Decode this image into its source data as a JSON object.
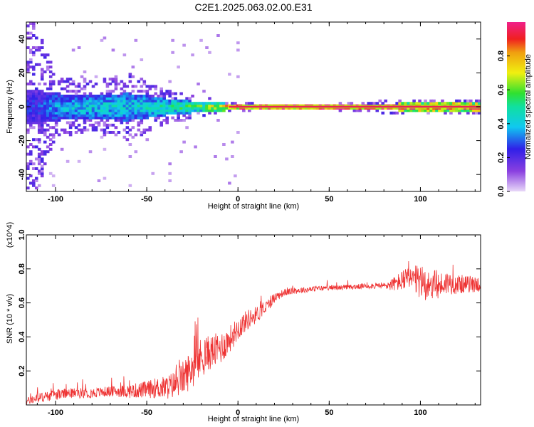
{
  "title": "C2E1.2025.063.02.00.E31",
  "colors": {
    "snr_line": "#ee3333",
    "axis": "#000000",
    "background": "#ffffff"
  },
  "chart_data": [
    {
      "type": "heatmap",
      "xlabel": "Height of straight line (km)",
      "ylabel": "Frequency (Hz)",
      "xlim": [
        -116,
        133
      ],
      "ylim": [
        -50,
        50
      ],
      "x_ticks": [
        -100,
        -50,
        0,
        50,
        100
      ],
      "x_tick_labels": [
        "-100",
        "-50",
        "0",
        "50",
        "100"
      ],
      "y_ticks": [
        -40,
        -20,
        0,
        20,
        40
      ],
      "y_tick_labels": [
        "-40",
        "-20",
        "0",
        "20",
        "40"
      ],
      "grid": false,
      "colorbar": {
        "label": "Normalized spectral amplitude",
        "range": [
          0,
          1
        ],
        "ticks": [
          0.0,
          0.2,
          0.4,
          0.6,
          0.8
        ],
        "tick_labels": [
          "0.0",
          "0.2",
          "0.4",
          "0.6",
          "0.8"
        ],
        "colormap": "purple-blue-cyan-green-yellow-red-magenta"
      },
      "bands": [
        {
          "x": -110,
          "core_amplitude": 0.25,
          "core_halfwidth_hz": 10,
          "scatter_extent_hz": 50
        },
        {
          "x": -100,
          "core_amplitude": 0.35,
          "core_halfwidth_hz": 8,
          "scatter_extent_hz": 18
        },
        {
          "x": -80,
          "core_amplitude": 0.4,
          "core_halfwidth_hz": 7,
          "scatter_extent_hz": 15
        },
        {
          "x": -60,
          "core_amplitude": 0.4,
          "core_halfwidth_hz": 8,
          "scatter_extent_hz": 20
        },
        {
          "x": -40,
          "core_amplitude": 0.45,
          "core_halfwidth_hz": 5,
          "scatter_extent_hz": 10
        },
        {
          "x": -20,
          "core_amplitude": 0.55,
          "core_halfwidth_hz": 3,
          "scatter_extent_hz": 6
        },
        {
          "x": -5,
          "core_amplitude": 0.8,
          "core_halfwidth_hz": 2,
          "scatter_extent_hz": 3
        },
        {
          "x": 10,
          "core_amplitude": 0.95,
          "core_halfwidth_hz": 1.5,
          "scatter_extent_hz": 2
        },
        {
          "x": 50,
          "core_amplitude": 0.95,
          "core_halfwidth_hz": 1.5,
          "scatter_extent_hz": 2
        },
        {
          "x": 85,
          "core_amplitude": 0.9,
          "core_halfwidth_hz": 2,
          "scatter_extent_hz": 4
        },
        {
          "x": 110,
          "core_amplitude": 0.85,
          "core_halfwidth_hz": 3,
          "scatter_extent_hz": 5
        },
        {
          "x": 133,
          "core_amplitude": 0.85,
          "core_halfwidth_hz": 3,
          "scatter_extent_hz": 5
        }
      ]
    },
    {
      "type": "line",
      "xlabel": "Height of straight line (km)",
      "ylabel": "SNR (10 * v/v)",
      "y_exponent_label": "(x10^4)",
      "xlim": [
        -116,
        133
      ],
      "ylim": [
        0,
        1.0
      ],
      "x_ticks": [
        -100,
        -50,
        0,
        50,
        100
      ],
      "x_tick_labels": [
        "-100",
        "-50",
        "0",
        "50",
        "100"
      ],
      "y_ticks": [
        0.2,
        0.4,
        0.6,
        0.8,
        1.0
      ],
      "y_tick_labels": [
        "0.2",
        "0.4",
        "0.6",
        "0.8",
        "1.0"
      ],
      "grid": false,
      "series": [
        {
          "x": [
            -116,
            -110,
            -100,
            -90,
            -80,
            -70,
            -60,
            -50,
            -45,
            -40,
            -35,
            -30,
            -25,
            -20,
            -15,
            -10,
            -5,
            0,
            5,
            10,
            15,
            20,
            25,
            30,
            40,
            50,
            60,
            70,
            80,
            85,
            90,
            95,
            100,
            105,
            110,
            115,
            120,
            125,
            130,
            133
          ],
          "y": [
            0.02,
            0.04,
            0.06,
            0.07,
            0.07,
            0.08,
            0.08,
            0.09,
            0.1,
            0.1,
            0.12,
            0.16,
            0.22,
            0.28,
            0.31,
            0.33,
            0.38,
            0.45,
            0.5,
            0.53,
            0.57,
            0.63,
            0.66,
            0.67,
            0.68,
            0.69,
            0.69,
            0.7,
            0.7,
            0.71,
            0.73,
            0.74,
            0.72,
            0.71,
            0.7,
            0.72,
            0.71,
            0.71,
            0.71,
            0.71
          ],
          "noise": [
            0.02,
            0.03,
            0.03,
            0.03,
            0.03,
            0.03,
            0.04,
            0.05,
            0.06,
            0.07,
            0.08,
            0.1,
            0.12,
            0.12,
            0.1,
            0.1,
            0.08,
            0.07,
            0.06,
            0.05,
            0.04,
            0.03,
            0.02,
            0.02,
            0.015,
            0.015,
            0.015,
            0.015,
            0.02,
            0.04,
            0.06,
            0.08,
            0.1,
            0.1,
            0.08,
            0.07,
            0.06,
            0.05,
            0.05,
            0.05
          ]
        }
      ]
    }
  ]
}
